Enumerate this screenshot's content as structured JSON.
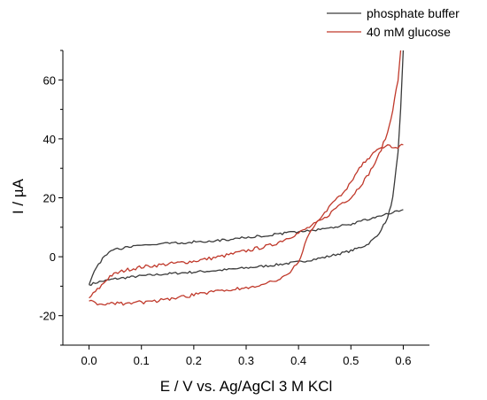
{
  "chart_data": {
    "type": "line",
    "title": "",
    "xlabel": "E / V vs. Ag/AgCl 3 M KCl",
    "ylabel": "I / µA",
    "xlim": [
      -0.05,
      0.65
    ],
    "ylim": [
      -30,
      70
    ],
    "x_ticks": [
      0.0,
      0.1,
      0.2,
      0.3,
      0.4,
      0.5,
      0.6
    ],
    "x_tick_labels": [
      "0.0",
      "0.1",
      "0.2",
      "0.3",
      "0.4",
      "0.5",
      "0.6"
    ],
    "y_ticks": [
      -20,
      0,
      20,
      40,
      60
    ],
    "y_tick_labels": [
      "-20",
      "0",
      "20",
      "40",
      "60"
    ],
    "grid": false,
    "legend_position": "top-right",
    "series": [
      {
        "name": "phosphate buffer",
        "color": "#3a3a3a",
        "forward": [
          [
            0.0,
            -9.5
          ],
          [
            0.02,
            -8.5
          ],
          [
            0.05,
            -7.5
          ],
          [
            0.1,
            -6.5
          ],
          [
            0.15,
            -5.8
          ],
          [
            0.2,
            -5.2
          ],
          [
            0.25,
            -4.6
          ],
          [
            0.3,
            -3.8
          ],
          [
            0.35,
            -2.9
          ],
          [
            0.4,
            -1.8
          ],
          [
            0.45,
            -0.2
          ],
          [
            0.5,
            2.0
          ],
          [
            0.53,
            4.0
          ],
          [
            0.55,
            7.0
          ],
          [
            0.57,
            13.0
          ],
          [
            0.58,
            20.0
          ],
          [
            0.59,
            35.0
          ],
          [
            0.595,
            50.0
          ],
          [
            0.6,
            70.0
          ]
        ],
        "reverse": [
          [
            0.6,
            16.0
          ],
          [
            0.58,
            15.0
          ],
          [
            0.55,
            13.5
          ],
          [
            0.5,
            11.0
          ],
          [
            0.45,
            9.5
          ],
          [
            0.4,
            8.5
          ],
          [
            0.35,
            7.5
          ],
          [
            0.3,
            6.5
          ],
          [
            0.25,
            5.5
          ],
          [
            0.2,
            5.0
          ],
          [
            0.15,
            4.5
          ],
          [
            0.1,
            3.8
          ],
          [
            0.05,
            2.5
          ],
          [
            0.03,
            0.5
          ],
          [
            0.01,
            -5.0
          ],
          [
            0.0,
            -9.5
          ]
        ]
      },
      {
        "name": "40 mM glucose",
        "color": "#c0392b",
        "forward": [
          [
            0.0,
            -14.0
          ],
          [
            0.02,
            -10.5
          ],
          [
            0.04,
            -6.5
          ],
          [
            0.07,
            -4.5
          ],
          [
            0.1,
            -3.5
          ],
          [
            0.15,
            -2.5
          ],
          [
            0.2,
            -1.5
          ],
          [
            0.25,
            0.0
          ],
          [
            0.3,
            2.0
          ],
          [
            0.35,
            4.0
          ],
          [
            0.4,
            8.0
          ],
          [
            0.45,
            13.0
          ],
          [
            0.48,
            18.0
          ],
          [
            0.5,
            20.0
          ],
          [
            0.53,
            27.0
          ],
          [
            0.55,
            33.0
          ],
          [
            0.57,
            42.0
          ],
          [
            0.58,
            50.0
          ],
          [
            0.59,
            60.0
          ],
          [
            0.595,
            70.0
          ]
        ],
        "reverse": [
          [
            0.6,
            38.0
          ],
          [
            0.59,
            37.0
          ],
          [
            0.57,
            37.5
          ],
          [
            0.55,
            36.0
          ],
          [
            0.52,
            31.0
          ],
          [
            0.5,
            25.0
          ],
          [
            0.47,
            19.0
          ],
          [
            0.45,
            15.0
          ],
          [
            0.42,
            8.0
          ],
          [
            0.4,
            -2.0
          ],
          [
            0.38,
            -6.0
          ],
          [
            0.35,
            -8.5
          ],
          [
            0.3,
            -10.5
          ],
          [
            0.25,
            -11.5
          ],
          [
            0.2,
            -13.0
          ],
          [
            0.15,
            -14.5
          ],
          [
            0.1,
            -15.5
          ],
          [
            0.05,
            -16.0
          ],
          [
            0.02,
            -16.0
          ],
          [
            0.0,
            -15.0
          ]
        ]
      }
    ]
  }
}
